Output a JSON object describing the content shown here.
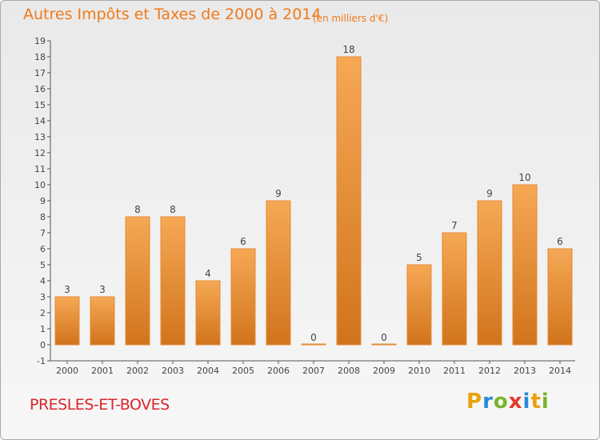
{
  "header": {
    "title": "Autres Impôts et Taxes de 2000 à 2014",
    "subtitle": "(en milliers d'€)"
  },
  "footer": {
    "commune": "PRESLES-ET-BOVES",
    "brand_letters": [
      "P",
      "r",
      "o",
      "x",
      "i",
      "t",
      "i"
    ],
    "brand_colors": [
      "#e8a20c",
      "#2a8ad6",
      "#79b52b",
      "#e23a2b",
      "#2a8ad6",
      "#e8a20c",
      "#79b52b"
    ]
  },
  "chart_data": {
    "type": "bar",
    "categories": [
      "2000",
      "2001",
      "2002",
      "2003",
      "2004",
      "2005",
      "2006",
      "2007",
      "2008",
      "2009",
      "2010",
      "2011",
      "2012",
      "2013",
      "2014"
    ],
    "values": [
      3,
      3,
      8,
      8,
      4,
      6,
      9,
      0,
      18,
      0,
      5,
      7,
      9,
      10,
      6
    ],
    "data_labels": [
      "3",
      "3",
      "8",
      "8",
      "4",
      "6",
      "9",
      "0",
      "18",
      "0",
      "5",
      "7",
      "9",
      "10",
      "6"
    ],
    "y_ticks": [
      "-1",
      "0",
      "1",
      "2",
      "3",
      "4",
      "5",
      "6",
      "7",
      "8",
      "9",
      "10",
      "11",
      "12",
      "13",
      "14",
      "15",
      "16",
      "17",
      "18",
      "19"
    ],
    "ylim": [
      -1,
      19
    ],
    "grid": false,
    "colors": {
      "bar_light": "#f6a855",
      "bar_dark": "#d1741c",
      "bar_edge": "#e48a33",
      "axis": "#555555",
      "text": "#444444"
    }
  }
}
